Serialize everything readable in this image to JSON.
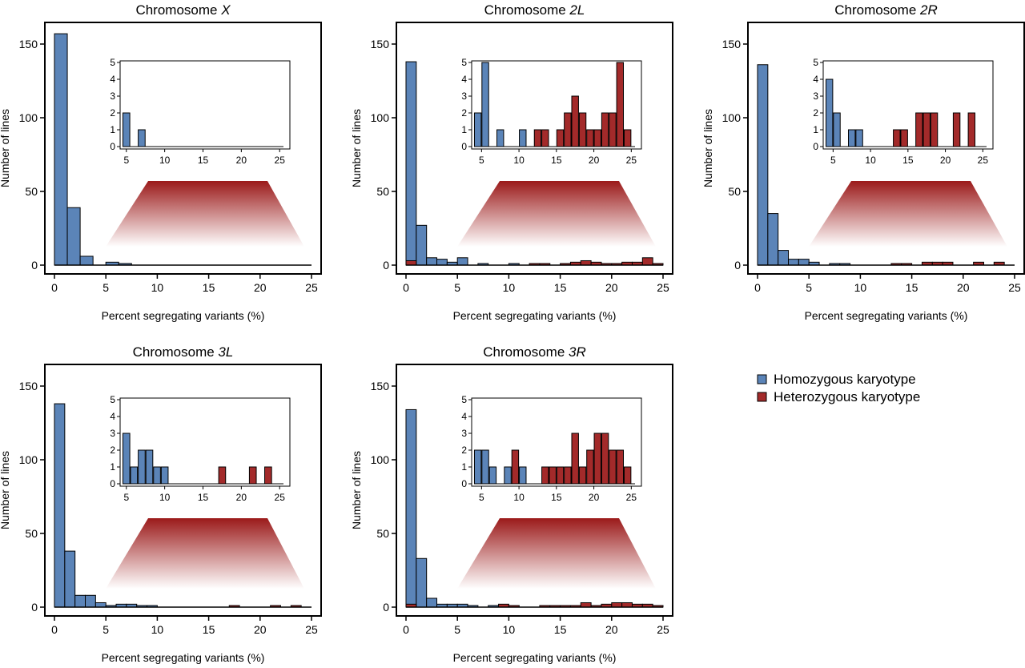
{
  "colors": {
    "homozygous": "#5b84b8",
    "heterozygous": "#a32a2a",
    "zoom": "#9b1a1a"
  },
  "legend": [
    {
      "name": "Homozygous karyotype",
      "color": "#5b84b8"
    },
    {
      "name": "Heterozygous karyotype",
      "color": "#a32a2a"
    }
  ],
  "chart_data": [
    {
      "type": "bar",
      "title_prefix": "Chromosome ",
      "title_suffix": "X",
      "xlabel": "Percent segregating variants (%)",
      "ylabel": "Number of lines",
      "xlim": [
        0,
        25
      ],
      "ylim": [
        0,
        160
      ],
      "xticks": [
        0,
        5,
        10,
        15,
        20,
        25
      ],
      "yticks": [
        0,
        50,
        100,
        150
      ],
      "bin_width": 1.25,
      "bin_starts": [
        0,
        1.25,
        2.5,
        3.75,
        5,
        6.25,
        7.5,
        8.75,
        10,
        11.25,
        12.5,
        13.75,
        15,
        16.25,
        17.5,
        18.75,
        20,
        21.25,
        22.5,
        23.75
      ],
      "series": [
        {
          "name": "Homozygous karyotype",
          "values": [
            157,
            39,
            6,
            0,
            2,
            1,
            0,
            0,
            0,
            0,
            0,
            0,
            0,
            0,
            0,
            0,
            0,
            0,
            0,
            0
          ]
        },
        {
          "name": "Heterozygous karyotype",
          "values": [
            0,
            0,
            0,
            0,
            0,
            0,
            0,
            0,
            0,
            0,
            0,
            0,
            0,
            0,
            0,
            0,
            0,
            0,
            0,
            0
          ]
        }
      ],
      "inset": {
        "xlim": [
          4.5,
          25.5
        ],
        "ylim": [
          0,
          5
        ],
        "xticks": [
          5,
          10,
          15,
          20,
          25
        ],
        "yticks": [
          0,
          1,
          2,
          3,
          4,
          5
        ],
        "bin_width": 0.9,
        "bars": [
          {
            "x": 5,
            "value": 2,
            "group": "homozygous"
          },
          {
            "x": 7,
            "value": 1,
            "group": "homozygous"
          }
        ]
      }
    },
    {
      "type": "bar",
      "title_prefix": "Chromosome ",
      "title_suffix": "2L",
      "xlabel": "Percent segregating variants (%)",
      "ylabel": "Number of lines",
      "xlim": [
        0,
        25
      ],
      "ylim": [
        0,
        160
      ],
      "xticks": [
        0,
        5,
        10,
        15,
        20,
        25
      ],
      "yticks": [
        0,
        50,
        100,
        150
      ],
      "bin_width": 1.0,
      "bin_starts": [
        0,
        1,
        2,
        3,
        4,
        5,
        6,
        7,
        8,
        9,
        10,
        11,
        12,
        13,
        14,
        15,
        16,
        17,
        18,
        19,
        20,
        21,
        22,
        23,
        24
      ],
      "series": [
        {
          "name": "Homozygous karyotype",
          "values": [
            138,
            27,
            5,
            4,
            2,
            5,
            0,
            1,
            0,
            0,
            1,
            0,
            0,
            0,
            0,
            0,
            0,
            0,
            0,
            0,
            0,
            0,
            0,
            0,
            0
          ]
        },
        {
          "name": "Heterozygous karyotype",
          "values": [
            3,
            0,
            0,
            0,
            0,
            0,
            0,
            0,
            0,
            0,
            0,
            0,
            1,
            1,
            0,
            1,
            2,
            3,
            2,
            1,
            1,
            2,
            2,
            5,
            1
          ]
        }
      ],
      "inset": {
        "xlim": [
          4,
          25.5
        ],
        "ylim": [
          0,
          5
        ],
        "xticks": [
          5,
          10,
          15,
          20,
          25
        ],
        "yticks": [
          0,
          1,
          2,
          3,
          4,
          5
        ],
        "bin_width": 0.9,
        "bars": [
          {
            "x": 4.5,
            "value": 2,
            "group": "homozygous"
          },
          {
            "x": 5.5,
            "value": 5,
            "group": "homozygous"
          },
          {
            "x": 7.5,
            "value": 1,
            "group": "homozygous"
          },
          {
            "x": 10.5,
            "value": 1,
            "group": "homozygous"
          },
          {
            "x": 12.5,
            "value": 1,
            "group": "heterozygous"
          },
          {
            "x": 13.5,
            "value": 1,
            "group": "heterozygous"
          },
          {
            "x": 15.5,
            "value": 1,
            "group": "heterozygous"
          },
          {
            "x": 16.5,
            "value": 2,
            "group": "heterozygous"
          },
          {
            "x": 17.5,
            "value": 3,
            "group": "heterozygous"
          },
          {
            "x": 18.5,
            "value": 2,
            "group": "heterozygous"
          },
          {
            "x": 19.5,
            "value": 1,
            "group": "heterozygous"
          },
          {
            "x": 20.5,
            "value": 1,
            "group": "heterozygous"
          },
          {
            "x": 21.5,
            "value": 2,
            "group": "heterozygous"
          },
          {
            "x": 22.5,
            "value": 2,
            "group": "heterozygous"
          },
          {
            "x": 23.5,
            "value": 5,
            "group": "heterozygous"
          },
          {
            "x": 24.5,
            "value": 1,
            "group": "heterozygous"
          }
        ]
      }
    },
    {
      "type": "bar",
      "title_prefix": "Chromosome ",
      "title_suffix": "2R",
      "xlabel": "Percent segregating variants (%)",
      "ylabel": "Number of lines",
      "xlim": [
        0,
        25
      ],
      "ylim": [
        0,
        160
      ],
      "xticks": [
        0,
        5,
        10,
        15,
        20,
        25
      ],
      "yticks": [
        0,
        50,
        100,
        150
      ],
      "bin_width": 1.0,
      "bin_starts": [
        0,
        1,
        2,
        3,
        4,
        5,
        6,
        7,
        8,
        9,
        10,
        11,
        12,
        13,
        14,
        15,
        16,
        17,
        18,
        19,
        20,
        21,
        22,
        23,
        24
      ],
      "series": [
        {
          "name": "Homozygous karyotype",
          "values": [
            136,
            35,
            10,
            4,
            4,
            2,
            0,
            1,
            1,
            0,
            0,
            0,
            0,
            0,
            0,
            0,
            0,
            0,
            0,
            0,
            0,
            0,
            0,
            0,
            0
          ]
        },
        {
          "name": "Heterozygous karyotype",
          "values": [
            0,
            0,
            0,
            0,
            0,
            0,
            0,
            0,
            0,
            0,
            0,
            0,
            0,
            1,
            1,
            0,
            2,
            2,
            2,
            0,
            0,
            2,
            0,
            2,
            0
          ]
        }
      ],
      "inset": {
        "xlim": [
          4,
          25.5
        ],
        "ylim": [
          0,
          5
        ],
        "xticks": [
          5,
          10,
          15,
          20,
          25
        ],
        "yticks": [
          0,
          1,
          2,
          3,
          4,
          5
        ],
        "bin_width": 0.9,
        "bars": [
          {
            "x": 4.5,
            "value": 4,
            "group": "homozygous"
          },
          {
            "x": 5.5,
            "value": 2,
            "group": "homozygous"
          },
          {
            "x": 7.5,
            "value": 1,
            "group": "homozygous"
          },
          {
            "x": 8.5,
            "value": 1,
            "group": "homozygous"
          },
          {
            "x": 13.5,
            "value": 1,
            "group": "heterozygous"
          },
          {
            "x": 14.5,
            "value": 1,
            "group": "heterozygous"
          },
          {
            "x": 16.5,
            "value": 2,
            "group": "heterozygous"
          },
          {
            "x": 17.5,
            "value": 2,
            "group": "heterozygous"
          },
          {
            "x": 18.5,
            "value": 2,
            "group": "heterozygous"
          },
          {
            "x": 21.5,
            "value": 2,
            "group": "heterozygous"
          },
          {
            "x": 23.5,
            "value": 2,
            "group": "heterozygous"
          }
        ]
      }
    },
    {
      "type": "bar",
      "title_prefix": "Chromosome ",
      "title_suffix": "3L",
      "xlabel": "Percent segregating variants (%)",
      "ylabel": "Number of lines",
      "xlim": [
        0,
        25
      ],
      "ylim": [
        0,
        160
      ],
      "xticks": [
        0,
        5,
        10,
        15,
        20,
        25
      ],
      "yticks": [
        0,
        50,
        100,
        150
      ],
      "bin_width": 1.0,
      "bin_starts": [
        0,
        1,
        2,
        3,
        4,
        5,
        6,
        7,
        8,
        9,
        10,
        11,
        12,
        13,
        14,
        15,
        16,
        17,
        18,
        19,
        20,
        21,
        22,
        23,
        24
      ],
      "series": [
        {
          "name": "Homozygous karyotype",
          "values": [
            138,
            38,
            8,
            8,
            3,
            1,
            2,
            2,
            1,
            1,
            0,
            0,
            0,
            0,
            0,
            0,
            0,
            0,
            0,
            0,
            0,
            0,
            0,
            0,
            0
          ]
        },
        {
          "name": "Heterozygous karyotype",
          "values": [
            0,
            0,
            0,
            0,
            0,
            0,
            0,
            0,
            0,
            0,
            0,
            0,
            0,
            0,
            0,
            0,
            0,
            1,
            0,
            0,
            0,
            1,
            0,
            1,
            0
          ]
        }
      ],
      "inset": {
        "xlim": [
          4.5,
          25.5
        ],
        "ylim": [
          0,
          5
        ],
        "xticks": [
          5,
          10,
          15,
          20,
          25
        ],
        "yticks": [
          0,
          1,
          2,
          3,
          4,
          5
        ],
        "bin_width": 0.9,
        "bars": [
          {
            "x": 5,
            "value": 3,
            "group": "homozygous"
          },
          {
            "x": 6,
            "value": 1,
            "group": "homozygous"
          },
          {
            "x": 7,
            "value": 2,
            "group": "homozygous"
          },
          {
            "x": 8,
            "value": 2,
            "group": "homozygous"
          },
          {
            "x": 9,
            "value": 1,
            "group": "homozygous"
          },
          {
            "x": 10,
            "value": 1,
            "group": "homozygous"
          },
          {
            "x": 17.5,
            "value": 1,
            "group": "heterozygous"
          },
          {
            "x": 21.5,
            "value": 1,
            "group": "heterozygous"
          },
          {
            "x": 23.5,
            "value": 1,
            "group": "heterozygous"
          }
        ]
      }
    },
    {
      "type": "bar",
      "title_prefix": "Chromosome ",
      "title_suffix": "3R",
      "xlabel": "Percent segregating variants (%)",
      "ylabel": "Number of lines",
      "xlim": [
        0,
        25
      ],
      "ylim": [
        0,
        160
      ],
      "xticks": [
        0,
        5,
        10,
        15,
        20,
        25
      ],
      "yticks": [
        0,
        50,
        100,
        150
      ],
      "bin_width": 1.0,
      "bin_starts": [
        0,
        1,
        2,
        3,
        4,
        5,
        6,
        7,
        8,
        9,
        10,
        11,
        12,
        13,
        14,
        15,
        16,
        17,
        18,
        19,
        20,
        21,
        22,
        23,
        24
      ],
      "series": [
        {
          "name": "Homozygous karyotype",
          "values": [
            134,
            33,
            6,
            2,
            2,
            2,
            1,
            0,
            1,
            0,
            1,
            0,
            0,
            0,
            0,
            0,
            0,
            0,
            0,
            0,
            0,
            0,
            0,
            0,
            0
          ]
        },
        {
          "name": "Heterozygous karyotype",
          "values": [
            2,
            0,
            0,
            0,
            0,
            0,
            0,
            0,
            0,
            2,
            1,
            0,
            0,
            1,
            1,
            1,
            1,
            3,
            1,
            2,
            3,
            3,
            2,
            2,
            1
          ]
        }
      ],
      "inset": {
        "xlim": [
          4,
          25.5
        ],
        "ylim": [
          0,
          5
        ],
        "xticks": [
          5,
          10,
          15,
          20,
          25
        ],
        "yticks": [
          0,
          1,
          2,
          3,
          4,
          5
        ],
        "bin_width": 0.9,
        "bars": [
          {
            "x": 4.5,
            "value": 2,
            "group": "homozygous"
          },
          {
            "x": 5.5,
            "value": 2,
            "group": "homozygous"
          },
          {
            "x": 6.5,
            "value": 1,
            "group": "homozygous"
          },
          {
            "x": 8.5,
            "value": 1,
            "group": "homozygous"
          },
          {
            "x": 9.5,
            "value": 2,
            "group": "heterozygous"
          },
          {
            "x": 10.5,
            "value": 1,
            "group": "homozygous"
          },
          {
            "x": 13.5,
            "value": 1,
            "group": "heterozygous"
          },
          {
            "x": 14.5,
            "value": 1,
            "group": "heterozygous"
          },
          {
            "x": 15.5,
            "value": 1,
            "group": "heterozygous"
          },
          {
            "x": 16.5,
            "value": 1,
            "group": "heterozygous"
          },
          {
            "x": 17.5,
            "value": 3,
            "group": "heterozygous"
          },
          {
            "x": 18.5,
            "value": 1,
            "group": "heterozygous"
          },
          {
            "x": 19.5,
            "value": 2,
            "group": "heterozygous"
          },
          {
            "x": 20.5,
            "value": 3,
            "group": "heterozygous"
          },
          {
            "x": 21.5,
            "value": 3,
            "group": "heterozygous"
          },
          {
            "x": 22.5,
            "value": 2,
            "group": "heterozygous"
          },
          {
            "x": 23.5,
            "value": 2,
            "group": "heterozygous"
          },
          {
            "x": 24.5,
            "value": 1,
            "group": "heterozygous"
          }
        ]
      }
    }
  ]
}
